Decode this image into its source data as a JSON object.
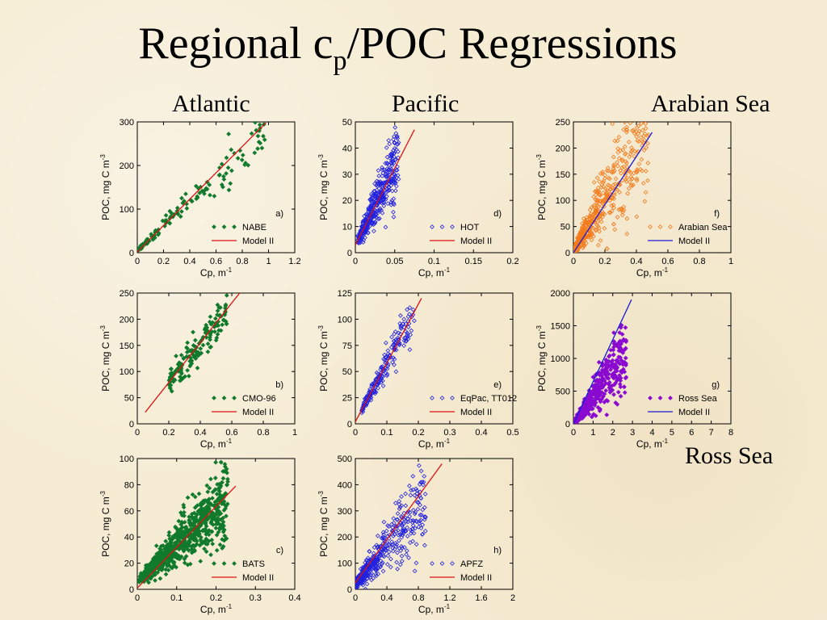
{
  "slide": {
    "title_main": "Regional c",
    "title_sub": "p",
    "title_rest": "/POC Regressions"
  },
  "regions": {
    "atlantic": "Atlantic",
    "pacific": "Pacific",
    "arabian": "Arabian Sea",
    "ross": "Ross Sea"
  },
  "colors": {
    "green": "#117a2c",
    "blue": "#2222dd",
    "orange": "#f47a1a",
    "purple": "#8a0ad0",
    "red": "#dd1111",
    "blue_line": "#1a1ad8"
  },
  "chart_data": [
    {
      "id": "a",
      "type": "scatter",
      "panel_label": "a)",
      "xlabel": "Cp, m",
      "xlabel_sup": "-1",
      "ylabel": "POC, mg C m",
      "ylabel_sup": "-3",
      "xlim": [
        0,
        1.2
      ],
      "ylim": [
        0,
        300
      ],
      "xticks": [
        "0",
        "0.2",
        "0.4",
        "0.6",
        "0.8",
        "1",
        "1.2"
      ],
      "yticks": [
        "0",
        "100",
        "200",
        "300"
      ],
      "scatter_color": "green",
      "line_color": "red",
      "series": [
        {
          "name": "NABE",
          "kind": "points",
          "n": 140,
          "slope": 285,
          "intercept": 5,
          "noise": 0.13,
          "xrange": [
            0.01,
            1.0
          ],
          "skew": 1.6,
          "marker": "filled"
        },
        {
          "name": "Model II",
          "kind": "line",
          "x": [
            0,
            0.98
          ],
          "y": [
            2,
            298
          ]
        }
      ]
    },
    {
      "id": "b",
      "type": "scatter",
      "panel_label": "b)",
      "xlabel": "Cp, m",
      "xlabel_sup": "-1",
      "ylabel": "POC, mg C m",
      "ylabel_sup": "-3",
      "xlim": [
        0,
        1
      ],
      "ylim": [
        0,
        250
      ],
      "xticks": [
        "0",
        "0.2",
        "0.4",
        "0.6",
        "0.8",
        "1"
      ],
      "yticks": [
        "0",
        "50",
        "100",
        "150",
        "200",
        "250"
      ],
      "scatter_color": "green",
      "line_color": "red",
      "series": [
        {
          "name": "CMO-96",
          "kind": "points",
          "n": 160,
          "slope": 370,
          "intercept": 5,
          "noise": 0.12,
          "xrange": [
            0.2,
            0.58
          ],
          "skew": 1.0,
          "marker": "filled"
        },
        {
          "name": "Model II",
          "kind": "line",
          "x": [
            0.05,
            0.65
          ],
          "y": [
            22,
            250
          ]
        }
      ]
    },
    {
      "id": "c",
      "type": "scatter",
      "panel_label": "c)",
      "xlabel": "Cp, m",
      "xlabel_sup": "-1",
      "ylabel": "POC, mg C m",
      "ylabel_sup": "-3",
      "xlim": [
        0,
        0.4
      ],
      "ylim": [
        0,
        100
      ],
      "xticks": [
        "0",
        "0.1",
        "0.2",
        "0.3",
        "0.4"
      ],
      "yticks": [
        "0",
        "20",
        "40",
        "60",
        "80",
        "100"
      ],
      "scatter_color": "green",
      "line_color": "red",
      "series": [
        {
          "name": "BATS",
          "kind": "points",
          "n": 700,
          "slope": 270,
          "intercept": 6,
          "noise": 0.25,
          "xrange": [
            0.005,
            0.23
          ],
          "skew": 1.0,
          "marker": "filled"
        },
        {
          "name": "Model II",
          "kind": "line",
          "x": [
            0,
            0.25
          ],
          "y": [
            1,
            79
          ]
        }
      ]
    },
    {
      "id": "d",
      "type": "scatter",
      "panel_label": "d)",
      "xlabel": "Cp, m",
      "xlabel_sup": "-1",
      "ylabel": "POC, mg C m",
      "ylabel_sup": "-3",
      "xlim": [
        0,
        0.2
      ],
      "ylim": [
        0,
        50
      ],
      "xticks": [
        "0",
        "0.05",
        "0.1",
        "0.15",
        "0.2"
      ],
      "yticks": [
        "0",
        "10",
        "20",
        "30",
        "40",
        "50"
      ],
      "scatter_color": "blue",
      "line_color": "red",
      "series": [
        {
          "name": "HOT",
          "kind": "points",
          "n": 420,
          "slope": 620,
          "intercept": 3,
          "noise": 0.2,
          "xrange": [
            0.003,
            0.055
          ],
          "skew": 1.0,
          "marker": "open"
        },
        {
          "name": "Model II",
          "kind": "line",
          "x": [
            0,
            0.075
          ],
          "y": [
            3,
            47
          ]
        }
      ]
    },
    {
      "id": "e",
      "type": "scatter",
      "panel_label": "e)",
      "xlabel": "Cp, m",
      "xlabel_sup": "-1",
      "ylabel": "POC, mg C m",
      "ylabel_sup": "-3",
      "xlim": [
        0,
        0.5
      ],
      "ylim": [
        0,
        125
      ],
      "xticks": [
        "0",
        "0.1",
        "0.2",
        "0.3",
        "0.4",
        "0.5"
      ],
      "yticks": [
        "0",
        "25",
        "50",
        "75",
        "100",
        "125"
      ],
      "scatter_color": "blue",
      "line_color": "red",
      "series": [
        {
          "name": "EqPac, TT012",
          "kind": "points",
          "n": 200,
          "slope": 560,
          "intercept": 2,
          "noise": 0.13,
          "xrange": [
            0.02,
            0.19
          ],
          "skew": 1.3,
          "marker": "open"
        },
        {
          "name": "Model II",
          "kind": "line",
          "x": [
            0,
            0.21
          ],
          "y": [
            2,
            120
          ]
        }
      ]
    },
    {
      "id": "f",
      "type": "scatter",
      "panel_label": "f)",
      "xlabel": "Cp, m",
      "xlabel_sup": "-1",
      "ylabel": "POC, mg C m",
      "ylabel_sup": "-3",
      "xlim": [
        0,
        1
      ],
      "ylim": [
        0,
        250
      ],
      "xticks": [
        "0",
        "0.2",
        "0.4",
        "0.6",
        "0.8",
        "1"
      ],
      "yticks": [
        "0",
        "50",
        "100",
        "150",
        "200",
        "250"
      ],
      "scatter_color": "orange",
      "line_color": "blue_line",
      "series": [
        {
          "name": "Arabian Sea",
          "kind": "points",
          "n": 650,
          "slope": 500,
          "intercept": 3,
          "noise": 0.32,
          "xrange": [
            0.003,
            0.48
          ],
          "skew": 2.4,
          "marker": "open"
        },
        {
          "name": "Model II",
          "kind": "line",
          "x": [
            0,
            0.5
          ],
          "y": [
            0,
            230
          ]
        }
      ]
    },
    {
      "id": "g",
      "type": "scatter",
      "panel_label": "g)",
      "xlabel": "Cp, m",
      "xlabel_sup": "-1",
      "ylabel": "POC, mg C m",
      "ylabel_sup": "-3",
      "xlim": [
        0,
        8
      ],
      "ylim": [
        0,
        2000
      ],
      "xticks": [
        "0",
        "1",
        "2",
        "3",
        "4",
        "5",
        "6",
        "7",
        "8"
      ],
      "yticks": [
        "0",
        "500",
        "1000",
        "1500",
        "2000"
      ],
      "scatter_color": "purple",
      "line_color": "blue_line",
      "series": [
        {
          "name": "Ross Sea",
          "kind": "points",
          "n": 550,
          "slope": 400,
          "intercept": 5,
          "noise": 0.3,
          "xrange": [
            0.02,
            2.7
          ],
          "skew": 2.0,
          "marker": "filled"
        },
        {
          "name": "Model II",
          "kind": "line",
          "x": [
            0,
            2.95
          ],
          "y": [
            0,
            1900
          ]
        }
      ]
    },
    {
      "id": "h",
      "type": "scatter",
      "panel_label": "h)",
      "xlabel": "Cp, m",
      "xlabel_sup": "-1",
      "ylabel": "POC, mg C m",
      "ylabel_sup": "-3",
      "xlim": [
        0,
        2
      ],
      "ylim": [
        0,
        500
      ],
      "xticks": [
        "0",
        "0.4",
        "0.8",
        "1.2",
        "1.6",
        "2"
      ],
      "yticks": [
        "0",
        "100",
        "200",
        "300",
        "400",
        "500"
      ],
      "scatter_color": "blue",
      "line_color": "red",
      "series": [
        {
          "name": "APFZ",
          "kind": "points",
          "n": 550,
          "slope": 350,
          "intercept": 20,
          "noise": 0.28,
          "xrange": [
            0.01,
            0.9
          ],
          "skew": 2.2,
          "marker": "open"
        },
        {
          "name": "Model II",
          "kind": "line",
          "x": [
            0,
            1.1
          ],
          "y": [
            25,
            480
          ]
        }
      ]
    }
  ]
}
